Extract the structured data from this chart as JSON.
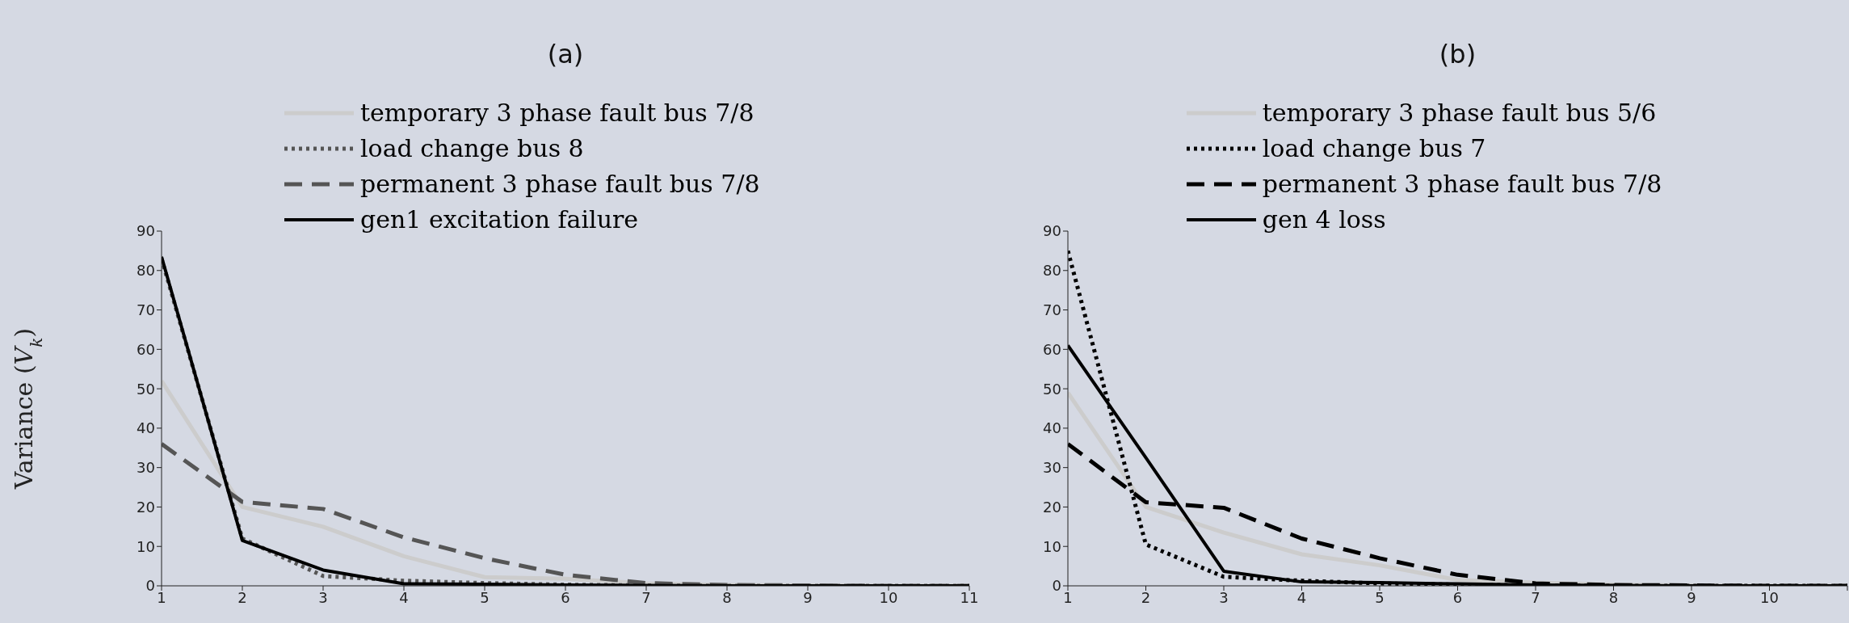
{
  "chart_data": [
    {
      "type": "line",
      "title": "(a)",
      "ylabel": "Variance (V$_{k}$)",
      "x": [
        1,
        2,
        3,
        4,
        5,
        6,
        7,
        8,
        9,
        10,
        11
      ],
      "xlim": [
        1,
        11
      ],
      "xticks": [
        1,
        2,
        3,
        4,
        5,
        6,
        7,
        8,
        9,
        10,
        11
      ],
      "ylim": [
        0,
        90
      ],
      "yticks": [
        0,
        10,
        20,
        30,
        40,
        50,
        60,
        70,
        80,
        90
      ],
      "legend": "top",
      "series": [
        {
          "name": "temporary 3 phase fault bus 7/8",
          "color": "#cccccc",
          "line_style": "solid",
          "values": [
            52,
            20,
            15,
            7.5,
            2.2,
            1.8,
            0.6,
            0.2,
            0.1,
            0,
            0
          ]
        },
        {
          "name": "load change bus 8",
          "color": "#555555",
          "line_style": "dotted",
          "values": [
            83,
            12,
            2.5,
            1.3,
            0.7,
            0.3,
            0.1,
            0,
            0,
            0,
            0
          ]
        },
        {
          "name": "permanent 3 phase fault bus 7/8",
          "color": "#555555",
          "line_style": "dashed",
          "values": [
            36,
            21.3,
            19.5,
            12.3,
            7,
            2.8,
            0.7,
            0.2,
            0.1,
            0,
            0
          ]
        },
        {
          "name": "gen1 excitation failure",
          "color": "#000000",
          "line_style": "solid",
          "values": [
            83.5,
            11.5,
            4,
            0.5,
            0.4,
            0.2,
            0.1,
            0,
            0,
            0,
            0
          ]
        }
      ]
    },
    {
      "type": "line",
      "title": "(b)",
      "x": [
        1,
        2,
        3,
        4,
        5,
        6,
        7,
        8,
        9,
        10,
        11
      ],
      "xlim": [
        1,
        11
      ],
      "xticks": [
        1,
        2,
        3,
        4,
        5,
        6,
        7,
        8,
        9,
        10,
        {
          "value": 11,
          "label": null
        }
      ],
      "ylim": [
        0,
        90
      ],
      "yticks": [
        0,
        10,
        20,
        30,
        40,
        50,
        60,
        70,
        80,
        90
      ],
      "legend": "top",
      "series": [
        {
          "name": "temporary 3 phase fault bus 5/6",
          "color": "#cccccc",
          "line_style": "solid",
          "values": [
            49,
            20,
            13.5,
            8,
            5.2,
            1.5,
            0.8,
            0.3,
            0.1,
            0,
            0
          ]
        },
        {
          "name": "load change bus 7",
          "color": "#000000",
          "line_style": "dotted",
          "values": [
            85,
            10.5,
            2.3,
            1.3,
            0.6,
            0.3,
            0.1,
            0,
            0,
            0,
            0
          ]
        },
        {
          "name": "permanent 3 phase fault bus 7/8",
          "color": "#000000",
          "line_style": "dashed",
          "values": [
            36,
            21.2,
            19.8,
            12,
            7,
            2.8,
            0.6,
            0.2,
            0.1,
            0,
            0
          ]
        },
        {
          "name": "gen 4 loss",
          "color": "#000000",
          "line_style": "solid",
          "values": [
            61,
            32.5,
            3.7,
            1,
            0.8,
            0.5,
            0.2,
            0.1,
            0,
            0,
            0
          ]
        }
      ]
    }
  ]
}
